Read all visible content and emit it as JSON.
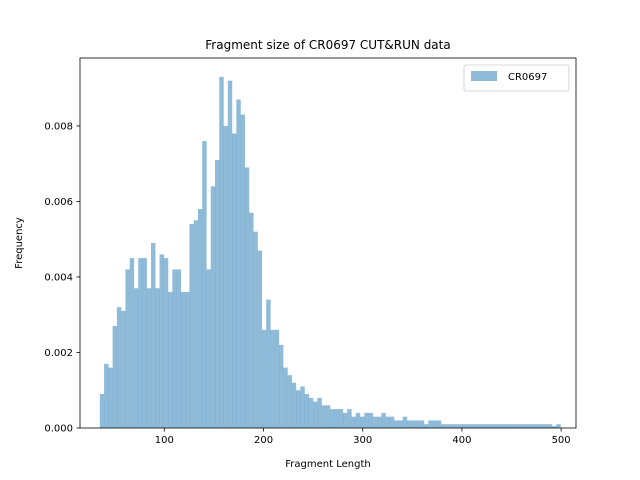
{
  "chart_data": {
    "type": "bar",
    "title": "Fragment size of CR0697 CUT&RUN data",
    "xlabel": "Fragment Length",
    "ylabel": "Frequency",
    "xlim": [
      15,
      515
    ],
    "ylim": [
      0,
      0.0098
    ],
    "x_ticks": [
      100,
      200,
      300,
      400,
      500
    ],
    "x_tick_labels": [
      "100",
      "200",
      "300",
      "400",
      "500"
    ],
    "y_ticks": [
      0,
      0.002,
      0.004,
      0.006,
      0.008
    ],
    "y_tick_labels": [
      "0.000",
      "0.002",
      "0.004",
      "0.006",
      "0.008"
    ],
    "legend_position": "top-right",
    "grid": false,
    "series": [
      {
        "name": "CR0697",
        "color": "#1f77b4",
        "alpha": 0.5,
        "bin_width": 4.3,
        "bin_start": 35,
        "values": [
          0.0009,
          0.0017,
          0.0016,
          0.0027,
          0.0032,
          0.0031,
          0.0042,
          0.0045,
          0.0037,
          0.0045,
          0.0045,
          0.0037,
          0.0049,
          0.0037,
          0.0046,
          0.0045,
          0.0036,
          0.0042,
          0.0042,
          0.0036,
          0.0036,
          0.0054,
          0.0055,
          0.0058,
          0.0076,
          0.0042,
          0.0064,
          0.0071,
          0.0093,
          0.008,
          0.0092,
          0.0078,
          0.0087,
          0.0083,
          0.0069,
          0.0057,
          0.0052,
          0.0047,
          0.0026,
          0.0034,
          0.0026,
          0.0026,
          0.0022,
          0.0016,
          0.0014,
          0.0012,
          0.001,
          0.0011,
          0.0009,
          0.0008,
          0.0007,
          0.0008,
          0.0006,
          0.0006,
          0.0005,
          0.0005,
          0.0005,
          0.0004,
          0.0005,
          0.0003,
          0.0004,
          0.0003,
          0.0004,
          0.0004,
          0.0003,
          0.0003,
          0.0004,
          0.0003,
          0.0003,
          0.0002,
          0.0002,
          0.0003,
          0.0002,
          0.0002,
          0.0002,
          0.0002,
          0.0001,
          0.0002,
          0.0002,
          0.0002,
          0.0001,
          0.0001,
          0.0001,
          0.0001,
          0.0001,
          0.0001,
          0.0001,
          0.0001,
          0.0001,
          0.0001,
          0.0001,
          0.0001,
          0.0001,
          0.0001,
          0.0001,
          0.0001,
          0.0001,
          0.0001,
          0.0001,
          0.0001,
          0.0001,
          0.0001,
          0.0001,
          0.0001,
          0.0001,
          0.0001,
          5e-05,
          0.0001
        ]
      }
    ]
  }
}
